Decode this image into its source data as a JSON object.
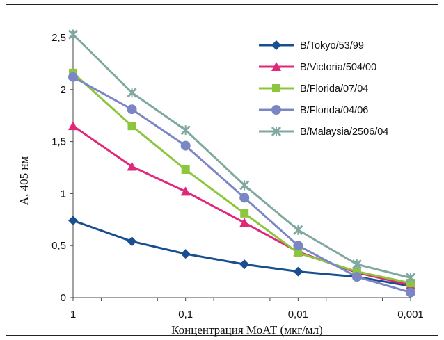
{
  "chart_data": {
    "type": "line",
    "title": "",
    "xlabel": "Концентрация МоАТ (мкг/мл)",
    "ylabel": "А, 405 нм",
    "x_scale": "log-reversed",
    "x": [
      1,
      0.3,
      0.1,
      0.03,
      0.01,
      0.003,
      0.001
    ],
    "xticks": [
      "1",
      "0,1",
      "0,01",
      "0,001"
    ],
    "yticks": [
      "0",
      "0,5",
      "1",
      "1,5",
      "2",
      "2,5"
    ],
    "ylim": [
      0,
      2.5
    ],
    "grid": false,
    "legend_position": "top-right",
    "series": [
      {
        "name": "B/Tokyo/53/99",
        "color": "#1a4f8f",
        "marker": "diamond",
        "values": [
          0.74,
          0.54,
          0.42,
          0.32,
          0.25,
          0.2,
          0.11
        ]
      },
      {
        "name": "B/Victoria/504/00",
        "color": "#e0287a",
        "marker": "triangle",
        "values": [
          1.65,
          1.26,
          1.02,
          0.72,
          0.44,
          0.24,
          0.12
        ]
      },
      {
        "name": "B/Florida/07/04",
        "color": "#8cc63f",
        "marker": "square",
        "values": [
          2.16,
          1.65,
          1.23,
          0.81,
          0.43,
          0.25,
          0.14
        ]
      },
      {
        "name": "B/Florida/04/06",
        "color": "#7b87c4",
        "marker": "circle",
        "values": [
          2.12,
          1.81,
          1.46,
          0.96,
          0.5,
          0.2,
          0.05
        ]
      },
      {
        "name": "B/Malaysia/2506/04",
        "color": "#7fa8a0",
        "marker": "x",
        "values": [
          2.53,
          1.97,
          1.61,
          1.08,
          0.65,
          0.32,
          0.19
        ]
      }
    ]
  }
}
